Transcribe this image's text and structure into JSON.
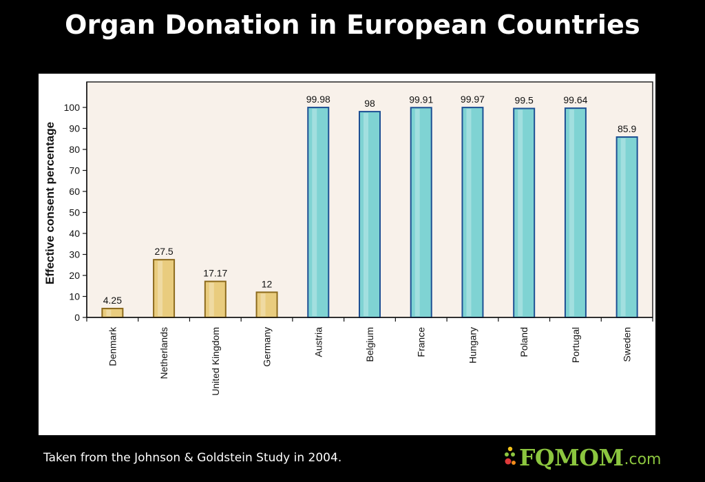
{
  "page": {
    "title": "Organ Donation in European Countries",
    "caption": "Taken from the Johnson & Goldstein Study in 2004.",
    "logo": {
      "text_main": "FQMOM",
      "text_suffix": ".com",
      "color": "#8cc63f"
    }
  },
  "chart_data": {
    "type": "bar",
    "title": "Organ Donation in European Countries",
    "xlabel": "",
    "ylabel": "Effective consent percentage",
    "ylim": [
      0,
      100
    ],
    "yticks": [
      0,
      10,
      20,
      30,
      40,
      50,
      60,
      70,
      80,
      90,
      100
    ],
    "grid": false,
    "categories": [
      "Denmark",
      "Netherlands",
      "United Kingdom",
      "Germany",
      "Austria",
      "Belgium",
      "France",
      "Hungary",
      "Poland",
      "Portugal",
      "Sweden"
    ],
    "values": [
      4.25,
      27.5,
      17.17,
      12,
      99.98,
      98,
      99.91,
      99.97,
      99.5,
      99.64,
      85.9
    ],
    "data_labels": [
      "4.25",
      "27.5",
      "17.17",
      "12",
      "99.98",
      "98",
      "99.91",
      "99.97",
      "99.5",
      "99.64",
      "85.9"
    ],
    "colors": {
      "opt_in_fill": "#e9cc7e",
      "opt_in_stroke": "#8c6a1c",
      "opt_out_fill": "#7fd3d3",
      "opt_out_stroke": "#1c4f93",
      "plot_background": "#f8f1ea"
    },
    "bar_group": [
      "opt_in",
      "opt_in",
      "opt_in",
      "opt_in",
      "opt_out",
      "opt_out",
      "opt_out",
      "opt_out",
      "opt_out",
      "opt_out",
      "opt_out"
    ]
  }
}
